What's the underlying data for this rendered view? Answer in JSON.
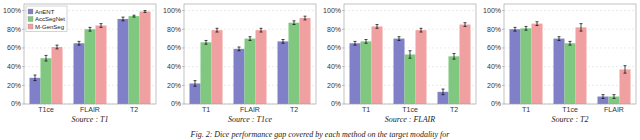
{
  "chart_data": [
    {
      "type": "bar",
      "x_label": "Source : T1",
      "categories": [
        "T1ce",
        "FLAIR",
        "T2"
      ],
      "series": [
        {
          "name": "AnENT",
          "color": "#8080c8",
          "values": [
            28,
            65,
            91
          ],
          "errors": [
            3,
            2,
            2
          ]
        },
        {
          "name": "AccSegNet",
          "color": "#80c880",
          "values": [
            49,
            80,
            94
          ],
          "errors": [
            3,
            2,
            1
          ]
        },
        {
          "name": "M-GenSeg",
          "color": "#f0a0a0",
          "values": [
            61,
            84,
            99
          ],
          "errors": [
            2,
            2,
            1
          ]
        }
      ],
      "ylim": [
        0,
        107
      ],
      "yticks": [
        {
          "value": 0,
          "label": "0%"
        },
        {
          "value": 20,
          "label": "20%"
        },
        {
          "value": 40,
          "label": "40%"
        },
        {
          "value": 60,
          "label": "60%"
        },
        {
          "value": 80,
          "label": "80%"
        },
        {
          "value": 100,
          "label": "100%"
        }
      ],
      "grid": true,
      "legend": "upper left",
      "annotations": [
        "Fig. 2: Dice performance gap covered by each method on the target modality for"
      ]
    },
    {
      "type": "bar",
      "x_label": "Source : T1ce",
      "categories": [
        "T1",
        "FLAIR",
        "T2"
      ],
      "series": [
        {
          "name": "AnENT",
          "color": "#8080c8",
          "values": [
            22,
            59,
            67
          ],
          "errors": [
            3,
            2,
            2
          ]
        },
        {
          "name": "AccSegNet",
          "color": "#80c880",
          "values": [
            66,
            70,
            87
          ],
          "errors": [
            2,
            2,
            2
          ]
        },
        {
          "name": "M-GenSeg",
          "color": "#f0a0a0",
          "values": [
            79,
            79,
            92
          ],
          "errors": [
            2,
            2,
            2
          ]
        }
      ],
      "ylim": [
        0,
        107
      ],
      "yticks": [
        {
          "value": 0,
          "label": "0%"
        },
        {
          "value": 20,
          "label": "20%"
        },
        {
          "value": 40,
          "label": "40%"
        },
        {
          "value": 60,
          "label": "60%"
        },
        {
          "value": 80,
          "label": "80%"
        },
        {
          "value": 100,
          "label": "100%"
        }
      ],
      "grid": true
    },
    {
      "type": "bar",
      "x_label": "Source : FLAIR",
      "categories": [
        "T1",
        "T1ce",
        "T2"
      ],
      "series": [
        {
          "name": "AnENT",
          "color": "#8080c8",
          "values": [
            65,
            70,
            13
          ],
          "errors": [
            2,
            2,
            3
          ]
        },
        {
          "name": "AccSegNet",
          "color": "#80c880",
          "values": [
            67,
            53,
            51
          ],
          "errors": [
            2,
            4,
            3
          ]
        },
        {
          "name": "M-GenSeg",
          "color": "#f0a0a0",
          "values": [
            83,
            79,
            85
          ],
          "errors": [
            2,
            2,
            2
          ]
        }
      ],
      "ylim": [
        0,
        107
      ],
      "yticks": [
        {
          "value": 0,
          "label": "0%"
        },
        {
          "value": 20,
          "label": "20%"
        },
        {
          "value": 40,
          "label": "40%"
        },
        {
          "value": 60,
          "label": "60%"
        },
        {
          "value": 80,
          "label": "80%"
        },
        {
          "value": 100,
          "label": "100%"
        }
      ],
      "grid": true
    },
    {
      "type": "bar",
      "x_label": "Source : T2",
      "categories": [
        "T1",
        "T1ce",
        "FLAIR"
      ],
      "series": [
        {
          "name": "AnENT",
          "color": "#8080c8",
          "values": [
            80,
            70,
            8
          ],
          "errors": [
            2,
            2,
            2
          ]
        },
        {
          "name": "AccSegNet",
          "color": "#80c880",
          "values": [
            81,
            65,
            8
          ],
          "errors": [
            2,
            2,
            2
          ]
        },
        {
          "name": "M-GenSeg",
          "color": "#f0a0a0",
          "values": [
            86,
            82,
            37
          ],
          "errors": [
            2,
            4,
            4
          ]
        }
      ],
      "ylim": [
        0,
        107
      ],
      "yticks": [
        {
          "value": 0,
          "label": "0%"
        },
        {
          "value": 20,
          "label": "20%"
        },
        {
          "value": 40,
          "label": "40%"
        },
        {
          "value": 60,
          "label": "60%"
        },
        {
          "value": 80,
          "label": "80%"
        },
        {
          "value": 100,
          "label": "100%"
        }
      ],
      "grid": true
    }
  ]
}
